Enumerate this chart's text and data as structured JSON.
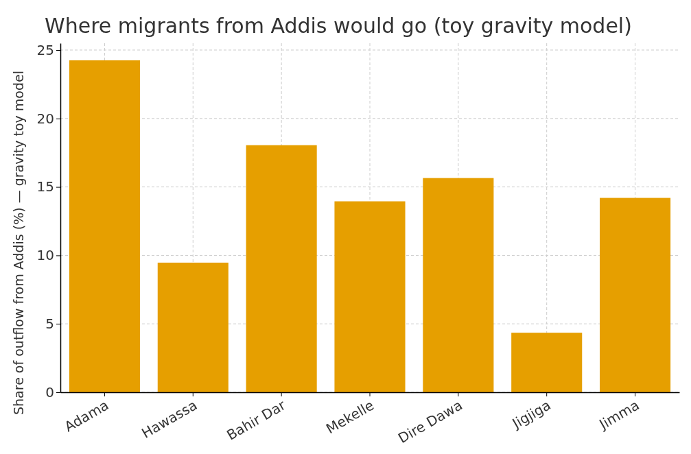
{
  "chart_data": {
    "type": "bar",
    "title": "Where migrants from Addis would go (toy gravity model)",
    "ylabel": "Share of outflow from Addis (%) — gravity toy model",
    "categories": [
      "Adama",
      "Hawassa",
      "Bahir Dar",
      "Mekelle",
      "Dire Dawa",
      "Jigjiga",
      "Jimma"
    ],
    "values": [
      24.25,
      9.47,
      18.05,
      13.95,
      15.65,
      4.35,
      14.2
    ],
    "color": "#e69f00",
    "ylim": [
      0,
      25.5
    ],
    "yticks": [
      0,
      5,
      10,
      15,
      20,
      25
    ],
    "grid": true
  }
}
